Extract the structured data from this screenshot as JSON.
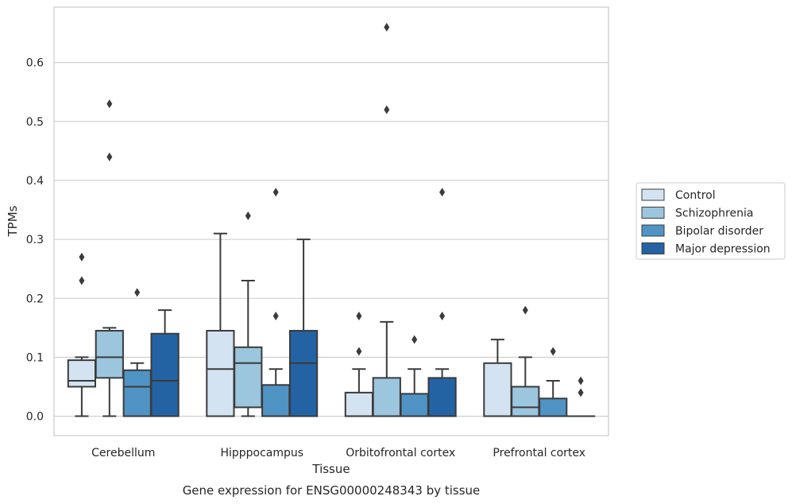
{
  "caption": "Gene expression for ENSG00000248343 by tissue",
  "chart_data": {
    "type": "box",
    "xlabel": "Tissue",
    "ylabel": "TPMs",
    "ylim": [
      -0.033,
      0.694
    ],
    "yticks": [
      "0.0",
      "0.1",
      "0.2",
      "0.3",
      "0.4",
      "0.5",
      "0.6"
    ],
    "ytick_values": [
      0.0,
      0.1,
      0.2,
      0.3,
      0.4,
      0.5,
      0.6
    ],
    "grid": "horizontal",
    "legend_position": "right",
    "categories": [
      "Cerebellum",
      "Hipppocampus",
      "Orbitofrontal cortex",
      "Prefrontal cortex"
    ],
    "series": [
      {
        "name": "Control",
        "color": "#d4e3f2",
        "boxes": [
          {
            "q1": 0.05,
            "median": 0.06,
            "q3": 0.095,
            "whisker_low": 0.0,
            "whisker_high": 0.1,
            "outliers": [
              0.23,
              0.27
            ]
          },
          {
            "q1": 0.0,
            "median": 0.08,
            "q3": 0.145,
            "whisker_low": 0.0,
            "whisker_high": 0.31,
            "outliers": []
          },
          {
            "q1": 0.0,
            "median": 0.0,
            "q3": 0.04,
            "whisker_low": 0.0,
            "whisker_high": 0.08,
            "outliers": [
              0.11,
              0.17
            ]
          },
          {
            "q1": 0.0,
            "median": 0.0,
            "q3": 0.09,
            "whisker_low": 0.0,
            "whisker_high": 0.13,
            "outliers": []
          }
        ]
      },
      {
        "name": "Schizophrenia",
        "color": "#9cc5de",
        "boxes": [
          {
            "q1": 0.065,
            "median": 0.1,
            "q3": 0.145,
            "whisker_low": 0.0,
            "whisker_high": 0.15,
            "outliers": [
              0.44,
              0.53
            ]
          },
          {
            "q1": 0.015,
            "median": 0.09,
            "q3": 0.117,
            "whisker_low": 0.0,
            "whisker_high": 0.23,
            "outliers": [
              0.34
            ]
          },
          {
            "q1": 0.0,
            "median": 0.0,
            "q3": 0.065,
            "whisker_low": 0.0,
            "whisker_high": 0.16,
            "outliers": [
              0.52,
              0.66
            ]
          },
          {
            "q1": 0.0,
            "median": 0.015,
            "q3": 0.05,
            "whisker_low": 0.0,
            "whisker_high": 0.1,
            "outliers": [
              0.18
            ]
          }
        ]
      },
      {
        "name": "Bipolar disorder",
        "color": "#5093c5",
        "boxes": [
          {
            "q1": 0.0,
            "median": 0.05,
            "q3": 0.078,
            "whisker_low": 0.0,
            "whisker_high": 0.09,
            "outliers": [
              0.21
            ]
          },
          {
            "q1": 0.0,
            "median": 0.0,
            "q3": 0.053,
            "whisker_low": 0.0,
            "whisker_high": 0.08,
            "outliers": [
              0.17,
              0.38
            ]
          },
          {
            "q1": 0.0,
            "median": 0.0,
            "q3": 0.038,
            "whisker_low": 0.0,
            "whisker_high": 0.08,
            "outliers": [
              0.13
            ]
          },
          {
            "q1": 0.0,
            "median": 0.0,
            "q3": 0.03,
            "whisker_low": 0.0,
            "whisker_high": 0.06,
            "outliers": [
              0.11
            ]
          }
        ]
      },
      {
        "name": "Major depression",
        "color": "#2463a3",
        "boxes": [
          {
            "q1": 0.0,
            "median": 0.06,
            "q3": 0.14,
            "whisker_low": 0.0,
            "whisker_high": 0.18,
            "outliers": []
          },
          {
            "q1": 0.0,
            "median": 0.09,
            "q3": 0.145,
            "whisker_low": 0.0,
            "whisker_high": 0.3,
            "outliers": []
          },
          {
            "q1": 0.0,
            "median": 0.0,
            "q3": 0.065,
            "whisker_low": 0.0,
            "whisker_high": 0.08,
            "outliers": [
              0.17,
              0.38
            ]
          },
          {
            "q1": 0.0,
            "median": 0.0,
            "q3": 0.0,
            "whisker_low": 0.0,
            "whisker_high": 0.0,
            "outliers": [
              0.04,
              0.06
            ]
          }
        ]
      }
    ]
  }
}
